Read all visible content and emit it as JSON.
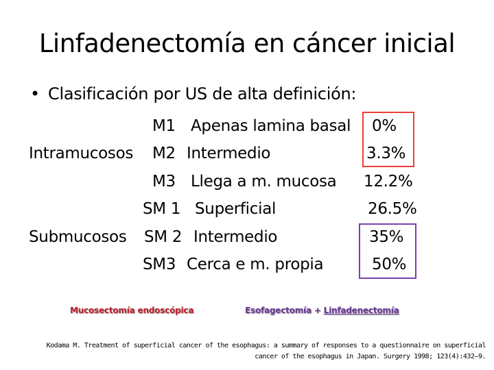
{
  "title": "Linfadenectomía en cáncer inicial",
  "bullet": {
    "symbol": "•",
    "text": "Clasificación por US de alta definición:"
  },
  "groups": {
    "intramucosos": "Intramucosos",
    "submucosos": "Submucosos"
  },
  "rows": [
    {
      "code": "M1",
      "desc": "Apenas lamina basal",
      "pct": "0%"
    },
    {
      "code": "M2",
      "desc": "Intermedio",
      "pct": "3.3%"
    },
    {
      "code": "M3",
      "desc": "Llega a m. mucosa",
      "pct": "12.2%"
    },
    {
      "code": "SM 1",
      "desc": "Superficial",
      "pct": "26.5%"
    },
    {
      "code": "SM 2",
      "desc": "Intermedio",
      "pct": "35%"
    },
    {
      "code": "SM3",
      "desc": "Cerca e m. propia",
      "pct": "50%"
    }
  ],
  "annotations": {
    "mucosectomy": "Mucosectomía endoscópica",
    "esophagectomy": "Esofagectomía",
    "plus": "+",
    "lymphadenectomy": "Linfadenectomía"
  },
  "reference": {
    "line1": "Kodama M. Treatment of superficial cancer of the esophagus: a summary of responses to a questionnaire on superficial",
    "line2": "cancer of the esophagus in Japan. Surgery 1998; 123(4):432–9."
  },
  "colors": {
    "red_box": "#e8413c",
    "purple_box": "#7b3fa8",
    "red_text": "#c0202a",
    "purple_text": "#6a3896"
  }
}
